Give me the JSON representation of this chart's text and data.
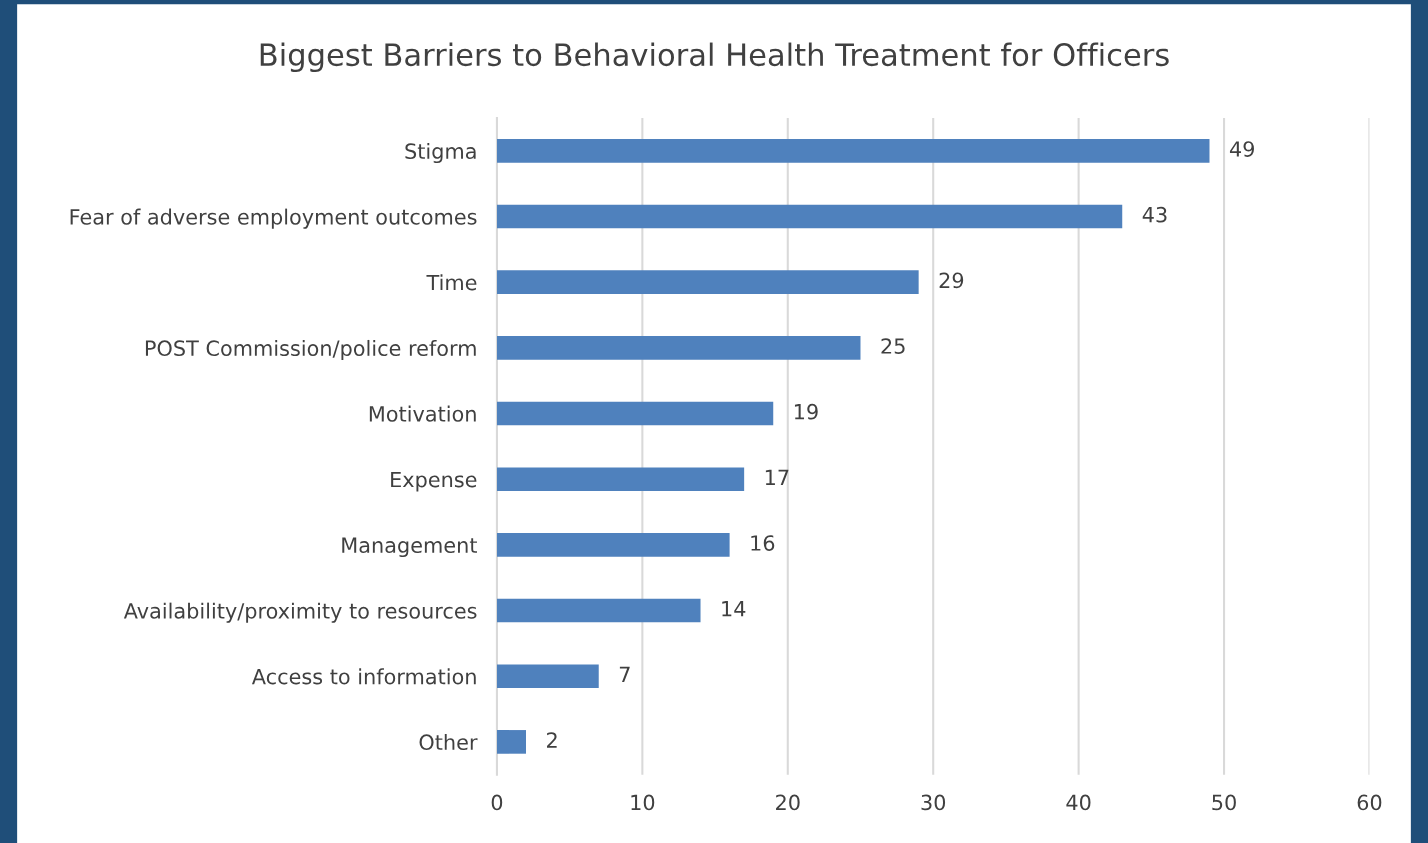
{
  "chart_data": {
    "type": "bar",
    "orientation": "horizontal",
    "title": "Biggest Barriers to Behavioral Health Treatment for Officers",
    "categories": [
      "Stigma",
      "Fear of adverse employment outcomes",
      "Time",
      "POST Commission/police reform",
      "Motivation",
      "Expense",
      "Management",
      "Availability/proximity to resources",
      "Access to information",
      "Other"
    ],
    "values": [
      49,
      43,
      29,
      25,
      19,
      17,
      16,
      14,
      7,
      2
    ],
    "color": "#4f81bd",
    "xlim": [
      0,
      60
    ],
    "xticks": [
      0,
      10,
      20,
      30,
      40,
      50,
      60
    ],
    "grid": "x",
    "data_labels": true
  }
}
